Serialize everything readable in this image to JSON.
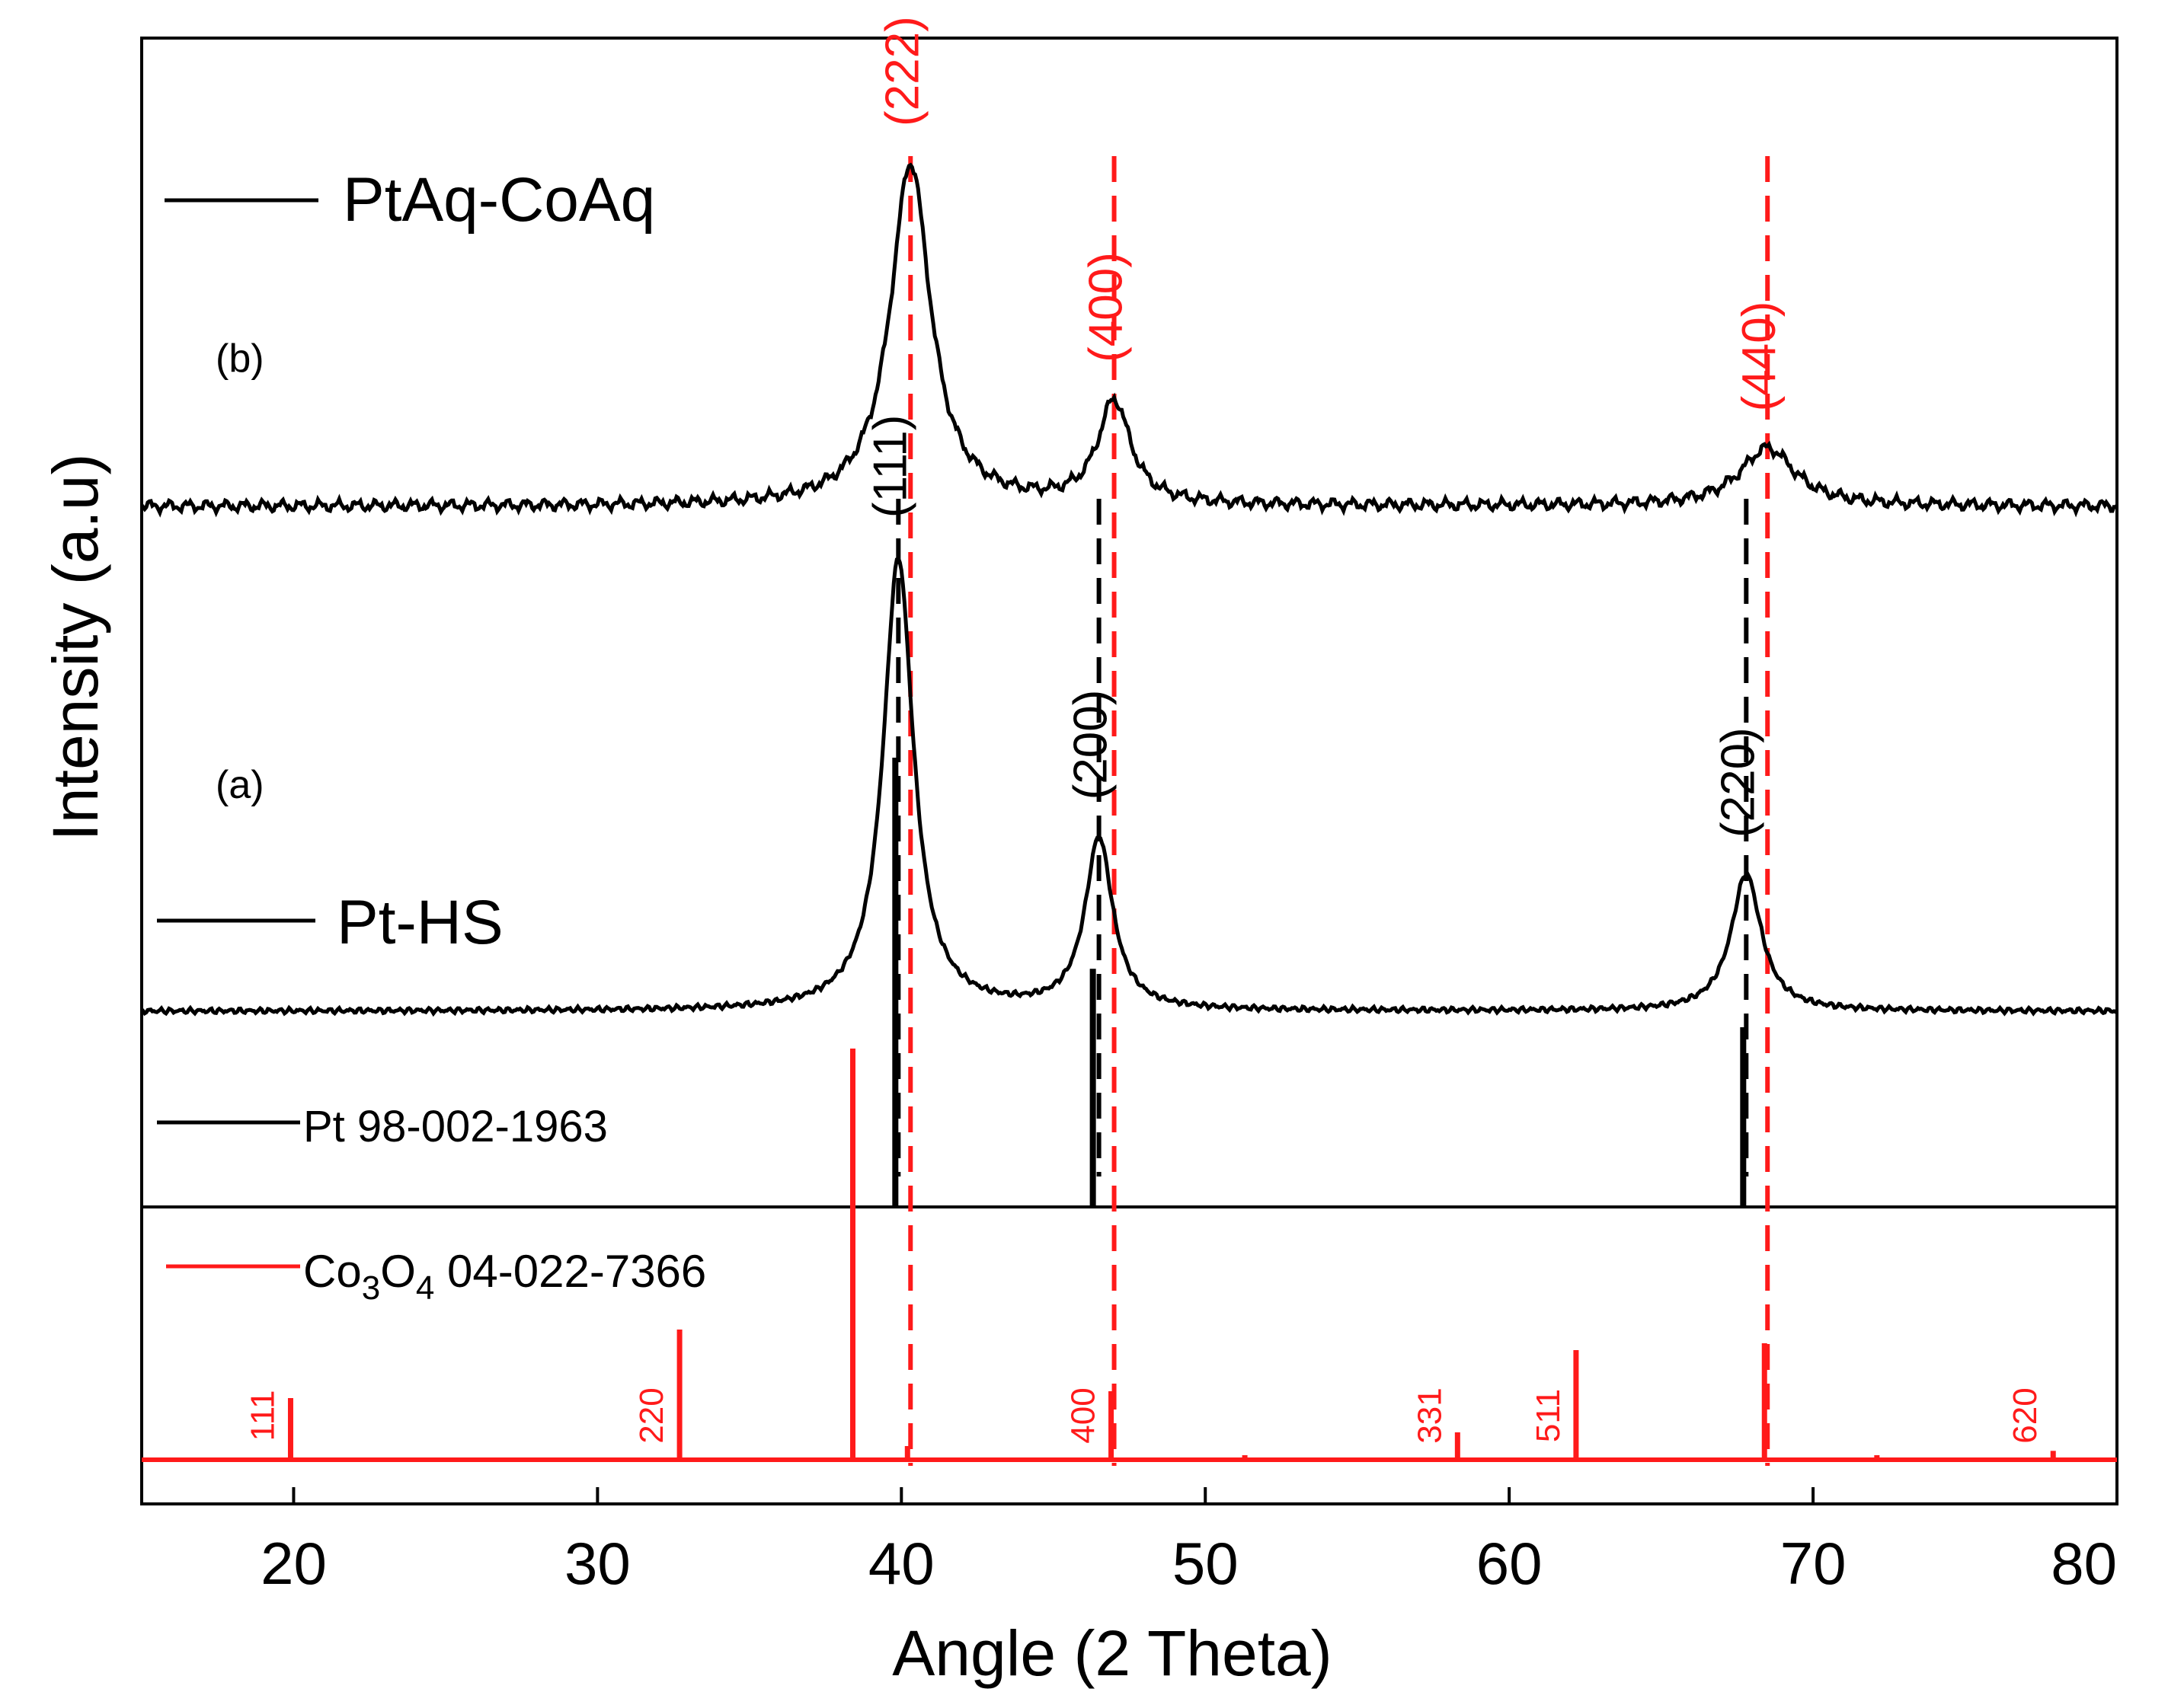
{
  "chart_data": {
    "type": "line",
    "title": "",
    "xlabel": "Angle (2 Theta)",
    "ylabel": "Intensity  (a.u)",
    "xlim": [
      15,
      80
    ],
    "xticks": [
      20,
      30,
      40,
      50,
      60,
      70,
      80
    ],
    "grid": false,
    "colors": {
      "measured": "#000000",
      "reference_pt": "#000000",
      "reference_co3o4": "#ff1a1a"
    },
    "series": [
      {
        "name": "PtAq-CoAq",
        "panel_label": "(b)",
        "color": "#000000",
        "baseline": 1.0,
        "peaks": [
          {
            "center": 40.3,
            "height": 1.0,
            "width": 1.6
          },
          {
            "center": 47.0,
            "height": 0.3,
            "width": 1.3
          },
          {
            "center": 68.5,
            "height": 0.17,
            "width": 2.2
          }
        ],
        "annotations": [
          {
            "label": "(222)",
            "x": 40.3
          },
          {
            "label": "(400)",
            "x": 47.0
          },
          {
            "label": "(440)",
            "x": 68.5
          }
        ]
      },
      {
        "name": "Pt-HS",
        "panel_label": "(a)",
        "color": "#000000",
        "baseline": 0.0,
        "peaks": [
          {
            "center": 39.9,
            "height": 1.32,
            "width": 1.2
          },
          {
            "center": 46.5,
            "height": 0.5,
            "width": 1.1
          },
          {
            "center": 67.8,
            "height": 0.4,
            "width": 1.2
          }
        ],
        "annotations": [
          {
            "label": "(111)",
            "x": 39.9
          },
          {
            "label": "(200)",
            "x": 46.5
          },
          {
            "label": "(220)",
            "x": 67.8
          }
        ]
      }
    ],
    "reference_patterns": [
      {
        "name": "Pt 98-002-1963",
        "color": "#000000",
        "lines": [
          {
            "x": 39.8,
            "intensity": 100
          },
          {
            "x": 46.3,
            "intensity": 53
          },
          {
            "x": 67.7,
            "intensity": 40
          }
        ]
      },
      {
        "name_main": "Co",
        "name_sub1": "3",
        "name_mid": "O",
        "name_sub2": "4",
        "name_rest": " 04-022-7366",
        "color": "#ff1a1a",
        "lines": [
          {
            "x": 19.9,
            "intensity": 9,
            "label": "111"
          },
          {
            "x": 32.7,
            "intensity": 19,
            "label": "220"
          },
          {
            "x": 38.4,
            "intensity": 60
          },
          {
            "x": 40.2,
            "intensity": 2
          },
          {
            "x": 46.9,
            "intensity": 10,
            "label": "400"
          },
          {
            "x": 51.3,
            "intensity": 0.6
          },
          {
            "x": 58.3,
            "intensity": 4,
            "label": "331"
          },
          {
            "x": 62.2,
            "intensity": 16,
            "label": "511"
          },
          {
            "x": 68.4,
            "intensity": 17
          },
          {
            "x": 72.1,
            "intensity": 0.6
          },
          {
            "x": 77.9,
            "intensity": 1.3,
            "label": "620"
          }
        ]
      }
    ],
    "dashed_guides": [
      {
        "x": 40.3,
        "color": "#ff1a1a"
      },
      {
        "x": 47.0,
        "color": "#ff1a1a"
      },
      {
        "x": 68.5,
        "color": "#ff1a1a"
      },
      {
        "x": 39.9,
        "color": "#000000"
      },
      {
        "x": 46.5,
        "color": "#000000"
      },
      {
        "x": 67.8,
        "color": "#000000"
      }
    ]
  }
}
